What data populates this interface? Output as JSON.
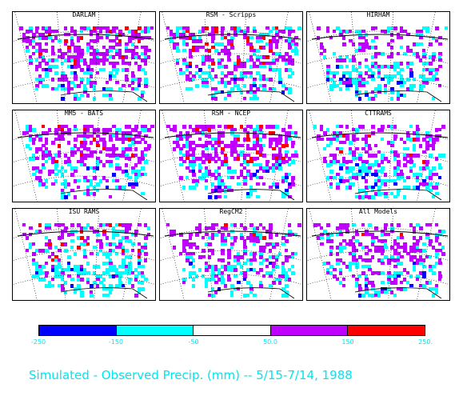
{
  "panels": [
    {
      "title": "DARLAM"
    },
    {
      "title": "RSM - Scripps"
    },
    {
      "title": "HIRHAM"
    },
    {
      "title": "MM5 - BATS"
    },
    {
      "title": "RSM - NCEP"
    },
    {
      "title": "CTTRAMS"
    },
    {
      "title": "ISU RAMS"
    },
    {
      "title": "RegCM2"
    },
    {
      "title": "All Models"
    }
  ],
  "legend": {
    "colors": [
      "#0000ff",
      "#00ffff",
      "#ffffff",
      "#c000ff",
      "#ff0000"
    ],
    "ticks": [
      "-250",
      "-150",
      "-50",
      "50.0",
      "150",
      "250."
    ]
  },
  "caption": "Simulated - Observed Precip. (mm) -- 5/15-7/14, 1988"
}
